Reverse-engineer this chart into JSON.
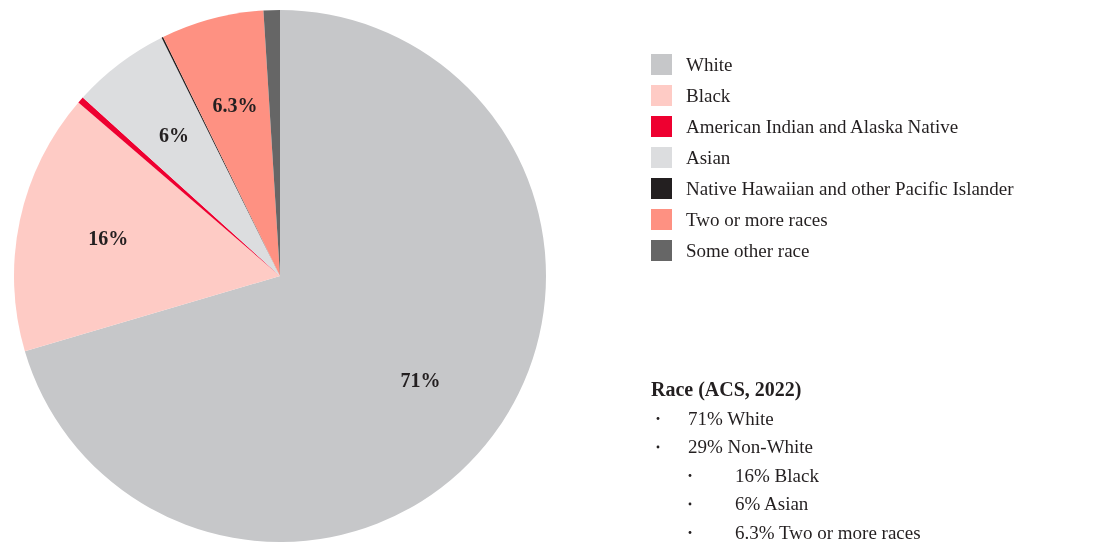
{
  "chart_data": {
    "type": "pie",
    "categories": [
      "White",
      "Black",
      "American Indian and Alaska Native",
      "Asian",
      "Native Hawaiian and other Pacific Islander",
      "Two or more races",
      "Some other race"
    ],
    "values": [
      71,
      16,
      0.4,
      6,
      0.1,
      6.3,
      1
    ],
    "colors": [
      "#c6c7c9",
      "#fecbc5",
      "#ee0030",
      "#dcdddf",
      "#231f20",
      "#fe9182",
      "#666666"
    ],
    "value_labels": [
      "71%",
      "16%",
      null,
      "6%",
      null,
      "6.3%",
      null
    ],
    "legend": "right",
    "annotations": [
      "Race (ACS, 2022)",
      "71% White",
      "29% Non-White",
      "16% Black",
      "6% Asian",
      "6.3% Two or more races"
    ]
  }
}
